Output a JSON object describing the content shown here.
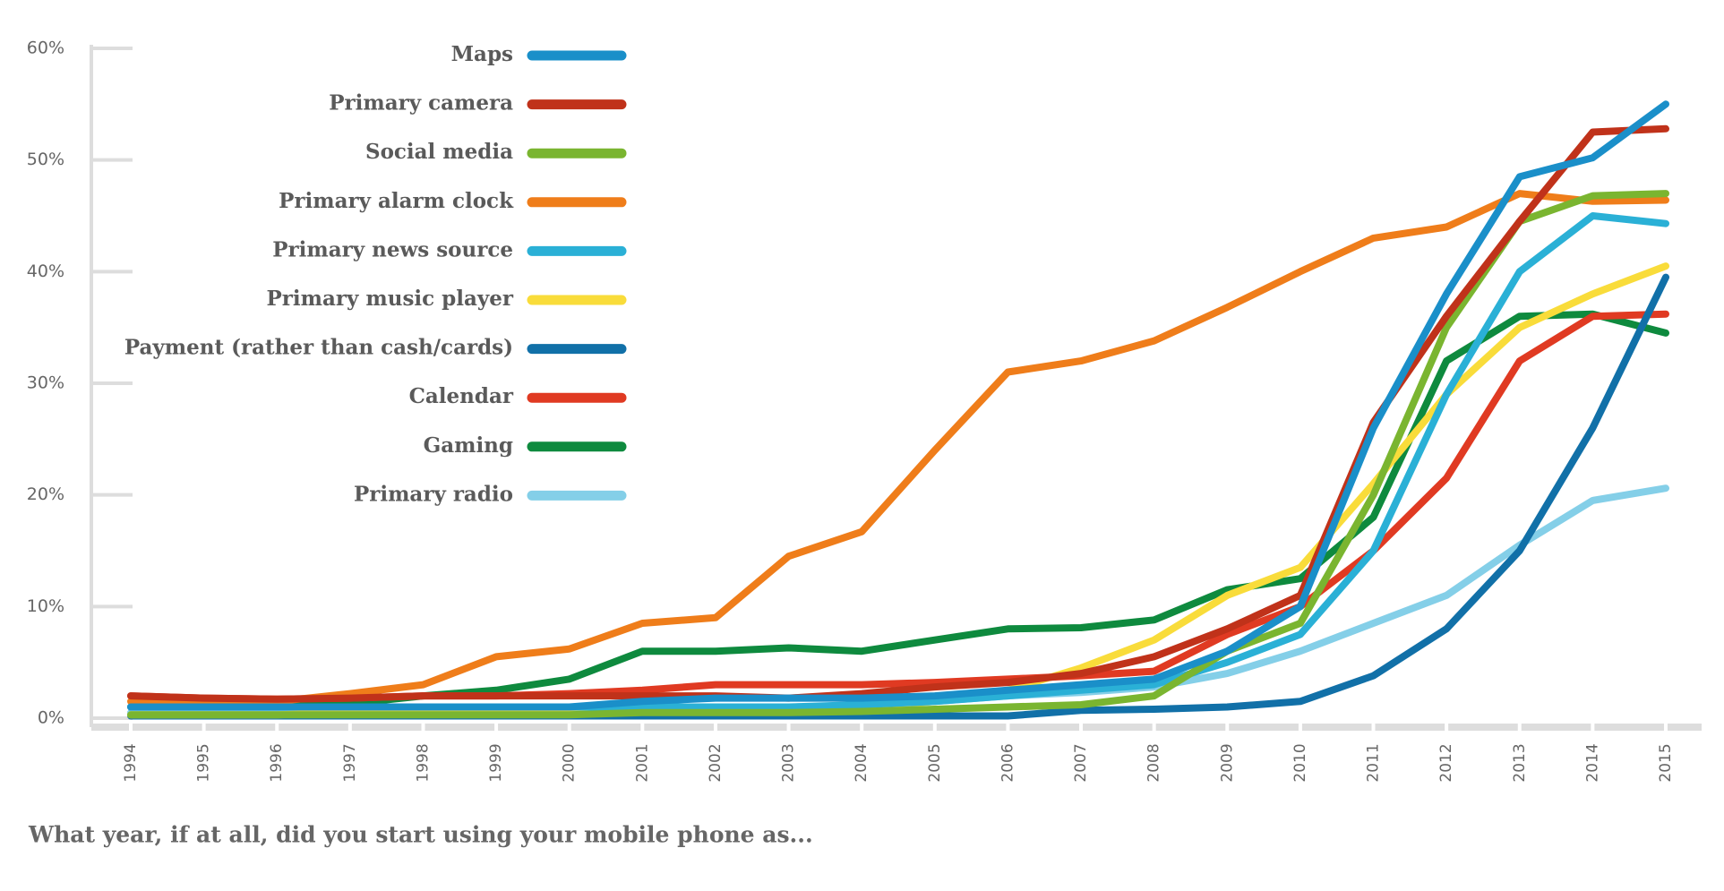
{
  "chart_data": {
    "type": "line",
    "caption": "What year, if at all, did you start using your mobile phone as...",
    "categories": [
      "1994",
      "1995",
      "1996",
      "1997",
      "1998",
      "1999",
      "2000",
      "2001",
      "2002",
      "2003",
      "2004",
      "2005",
      "2006",
      "2007",
      "2008",
      "2009",
      "2010",
      "2011",
      "2012",
      "2013",
      "2014",
      "2015"
    ],
    "series": [
      {
        "name": "Maps",
        "color": "#1a8fc9",
        "values": [
          1,
          1,
          1,
          1,
          1,
          1,
          1,
          1.5,
          1.8,
          1.8,
          1.8,
          2,
          2.5,
          3,
          3.5,
          6,
          10,
          26,
          38,
          48.5,
          50.2,
          55
        ]
      },
      {
        "name": "Primary camera",
        "color": "#c0321a",
        "values": [
          2,
          1.8,
          1.7,
          1.8,
          2,
          2,
          2,
          2,
          2,
          1.8,
          2.2,
          2.8,
          3.2,
          4,
          5.5,
          8,
          11,
          26.5,
          36,
          44.5,
          52.5,
          52.8
        ]
      },
      {
        "name": "Social media",
        "color": "#7ab530",
        "values": [
          0.3,
          0.3,
          0.3,
          0.3,
          0.3,
          0.3,
          0.3,
          0.5,
          0.5,
          0.5,
          0.6,
          0.8,
          1,
          1.2,
          2,
          6,
          8.5,
          20,
          35,
          44.5,
          46.8,
          47
        ]
      },
      {
        "name": "Primary alarm clock",
        "color": "#ef7d1a",
        "values": [
          1.5,
          1.5,
          1.5,
          2.2,
          3,
          5.5,
          6.2,
          8.5,
          9,
          14.5,
          16.7,
          24,
          31,
          32,
          33.8,
          36.8,
          40,
          43,
          44,
          47,
          46.3,
          46.4
        ]
      },
      {
        "name": "Primary news source",
        "color": "#2ab0d6",
        "values": [
          1,
          1,
          1,
          1,
          1,
          1,
          1,
          1,
          1,
          1,
          1.2,
          1.5,
          2,
          2.5,
          3,
          5,
          7.5,
          15,
          29,
          40,
          45,
          44.3
        ]
      },
      {
        "name": "Primary music player",
        "color": "#f9dc3a",
        "values": [
          0.3,
          0.3,
          0.3,
          0.5,
          0.5,
          0.5,
          0.5,
          0.6,
          0.6,
          0.8,
          1,
          1.5,
          2.5,
          4.5,
          7,
          11,
          13.5,
          21,
          29,
          35,
          38,
          40.5
        ]
      },
      {
        "name": "Payment (rather than cash/cards)",
        "color": "#1170a8",
        "values": [
          0.2,
          0.2,
          0.2,
          0.2,
          0.2,
          0.2,
          0.2,
          0.2,
          0.2,
          0.2,
          0.2,
          0.2,
          0.2,
          0.7,
          0.8,
          1,
          1.5,
          3.8,
          8,
          15,
          26,
          39.5
        ]
      },
      {
        "name": "Calendar",
        "color": "#e03a22",
        "values": [
          2,
          1.8,
          1.7,
          1.8,
          2,
          2,
          2.2,
          2.5,
          3,
          3,
          3,
          3.2,
          3.5,
          3.8,
          4.2,
          7.5,
          10,
          15,
          21.5,
          32,
          36,
          36.2
        ]
      },
      {
        "name": "Gaming",
        "color": "#0e8a3e",
        "values": [
          1,
          1,
          1,
          1.3,
          2,
          2.5,
          3.5,
          6,
          6,
          6.3,
          6,
          7,
          8,
          8.1,
          8.8,
          11.5,
          12.5,
          18,
          32,
          36,
          36.2,
          34.5
        ]
      },
      {
        "name": "Primary radio",
        "color": "#84cfe8",
        "values": [
          0.5,
          0.5,
          0.5,
          0.7,
          0.8,
          0.8,
          0.8,
          0.8,
          0.8,
          0.8,
          1,
          1.5,
          2,
          2.3,
          2.8,
          4,
          6,
          8.5,
          11,
          15.5,
          19.5,
          20.6
        ]
      }
    ],
    "ylim": [
      0,
      60
    ],
    "yticks": [
      {
        "value": 0,
        "label": "0%"
      },
      {
        "value": 10,
        "label": "10%"
      },
      {
        "value": 20,
        "label": "20%"
      },
      {
        "value": 30,
        "label": "30%"
      },
      {
        "value": 40,
        "label": "40%"
      },
      {
        "value": 50,
        "label": "50%"
      },
      {
        "value": 60,
        "label": "60%"
      }
    ]
  }
}
